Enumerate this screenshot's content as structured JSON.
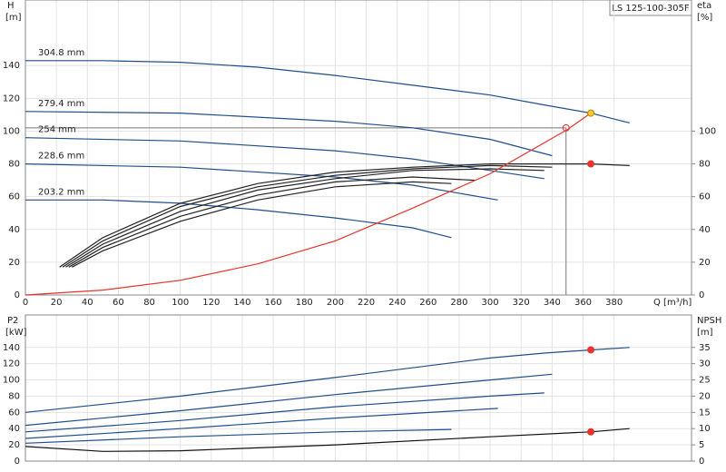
{
  "chart_data": [
    {
      "type": "line",
      "title": "LS 125-100-305F",
      "ylabel": "H",
      "yunit": "[m]",
      "y2label": "eta",
      "y2unit": "[%]",
      "xlabel": "Q [m³/h]",
      "xlim": [
        0,
        430
      ],
      "xticks": [
        0,
        20,
        40,
        60,
        80,
        100,
        120,
        140,
        160,
        180,
        200,
        220,
        240,
        260,
        280,
        300,
        320,
        340,
        360,
        380
      ],
      "show_xtick_labels": true,
      "ylim": [
        0,
        180
      ],
      "yticks": [
        0,
        20,
        40,
        60,
        80,
        100,
        120,
        140
      ],
      "y2lim": [
        0,
        180
      ],
      "y2ticks": [
        0,
        20,
        40,
        60,
        80,
        100
      ],
      "grid": true,
      "series": [
        {
          "name": "304.8 mm",
          "color": "#1f4e8c",
          "axis": "y",
          "x": [
            0,
            50,
            100,
            150,
            200,
            250,
            300,
            335,
            365,
            390
          ],
          "values": [
            143,
            143,
            142,
            139,
            134,
            128,
            122,
            116,
            111,
            105
          ]
        },
        {
          "name": "279.4 mm",
          "color": "#1f4e8c",
          "axis": "y",
          "x": [
            0,
            100,
            200,
            250,
            300,
            340
          ],
          "values": [
            112,
            111,
            106,
            102,
            95,
            85
          ]
        },
        {
          "name": "254 mm",
          "color": "#1f4e8c",
          "axis": "y",
          "x": [
            0,
            100,
            200,
            250,
            300,
            335
          ],
          "values": [
            96,
            94,
            88,
            83,
            76,
            71
          ]
        },
        {
          "name": "228.6 mm",
          "color": "#1f4e8c",
          "axis": "y",
          "x": [
            0,
            100,
            200,
            250,
            305
          ],
          "values": [
            80,
            78,
            72,
            67,
            58
          ]
        },
        {
          "name": "203.2 mm",
          "color": "#1f4e8c",
          "axis": "y",
          "x": [
            0,
            50,
            100,
            150,
            200,
            250,
            275
          ],
          "values": [
            58,
            58,
            56,
            52,
            47,
            41,
            35
          ]
        },
        {
          "color": "#222222",
          "axis": "y2",
          "x": [
            22,
            50,
            100,
            150,
            200,
            250,
            300,
            335,
            365,
            390
          ],
          "values": [
            17,
            35,
            56,
            68,
            75,
            78,
            80,
            80,
            80,
            79
          ]
        },
        {
          "color": "#222222",
          "axis": "y2",
          "x": [
            24,
            50,
            100,
            150,
            200,
            250,
            300,
            340
          ],
          "values": [
            17,
            33,
            54,
            66,
            73,
            77,
            79,
            78
          ]
        },
        {
          "color": "#222222",
          "axis": "y2",
          "x": [
            26,
            50,
            100,
            150,
            200,
            250,
            300,
            335
          ],
          "values": [
            17,
            31,
            51,
            64,
            71,
            76,
            77,
            76
          ]
        },
        {
          "color": "#222222",
          "axis": "y2",
          "x": [
            28,
            50,
            100,
            150,
            200,
            250,
            290
          ],
          "values": [
            17,
            29,
            48,
            61,
            69,
            72,
            70
          ]
        },
        {
          "color": "#222222",
          "axis": "y2",
          "x": [
            30,
            50,
            100,
            150,
            200,
            250,
            275
          ],
          "values": [
            17,
            27,
            45,
            58,
            66,
            69,
            68
          ]
        },
        {
          "color": "#e8332a",
          "axis": "y",
          "x": [
            0,
            50,
            100,
            150,
            200,
            250,
            300,
            350,
            365
          ],
          "values": [
            0,
            3,
            9,
            19,
            33,
            53,
            74,
            101,
            111
          ]
        }
      ],
      "guides": {
        "x": 349,
        "y": 102
      },
      "markers": [
        {
          "x": 349,
          "y": 102,
          "axis": "y",
          "color": "#e8332a",
          "fill": "none"
        },
        {
          "x": 365,
          "y": 111,
          "axis": "y",
          "color": "#b08a00",
          "fill": "#f7c92a"
        },
        {
          "x": 365,
          "y": 80,
          "axis": "y2",
          "color": "#e8332a",
          "fill": "#e8332a"
        }
      ]
    },
    {
      "type": "line",
      "ylabel": "P2",
      "yunit": "[kW]",
      "y2label": "NPSH",
      "y2unit": "[m]",
      "xlim": [
        0,
        430
      ],
      "xticks": [
        0,
        20,
        40,
        60,
        80,
        100,
        120,
        140,
        160,
        180,
        200,
        220,
        240,
        260,
        280,
        300,
        320,
        340,
        360,
        380
      ],
      "show_xtick_labels": false,
      "ylim": [
        0,
        180
      ],
      "yticks": [
        0,
        20,
        40,
        60,
        80,
        100,
        120,
        140
      ],
      "y2lim": [
        0,
        45
      ],
      "y2ticks": [
        0,
        5,
        10,
        15,
        20,
        25,
        30,
        35
      ],
      "grid": true,
      "series": [
        {
          "color": "#1f4e8c",
          "axis": "y",
          "x": [
            0,
            100,
            200,
            300,
            335,
            365,
            390
          ],
          "values": [
            60,
            80,
            103,
            127,
            133,
            137,
            140
          ]
        },
        {
          "color": "#1f4e8c",
          "axis": "y",
          "x": [
            0,
            100,
            200,
            300,
            340
          ],
          "values": [
            44,
            62,
            82,
            100,
            107
          ]
        },
        {
          "color": "#1f4e8c",
          "axis": "y",
          "x": [
            0,
            100,
            200,
            300,
            335
          ],
          "values": [
            36,
            50,
            67,
            80,
            84
          ]
        },
        {
          "color": "#1f4e8c",
          "axis": "y",
          "x": [
            0,
            100,
            200,
            305
          ],
          "values": [
            28,
            40,
            53,
            65
          ]
        },
        {
          "color": "#1f4e8c",
          "axis": "y",
          "x": [
            0,
            100,
            200,
            275
          ],
          "values": [
            22,
            30,
            36,
            39
          ]
        },
        {
          "color": "#111111",
          "axis": "y2",
          "x": [
            0,
            50,
            100,
            200,
            300,
            365,
            390
          ],
          "values": [
            4.5,
            3,
            3.2,
            5,
            7.5,
            9,
            10
          ]
        }
      ],
      "markers": [
        {
          "x": 365,
          "y": 137,
          "axis": "y",
          "color": "#e8332a",
          "fill": "#e8332a"
        },
        {
          "x": 365,
          "y": 9,
          "axis": "y2",
          "color": "#e8332a",
          "fill": "#e8332a"
        }
      ]
    }
  ]
}
